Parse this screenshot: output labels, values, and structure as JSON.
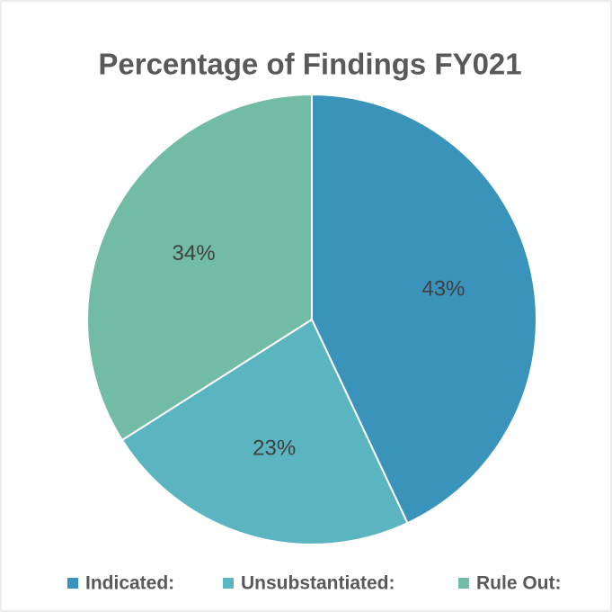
{
  "chart_data": {
    "type": "pie",
    "title": "Percentage of Findings FY021",
    "categories": [
      "Indicated:",
      "Unsubstantiated:",
      "Rule Out:"
    ],
    "values": [
      43,
      23,
      34
    ],
    "value_labels": [
      "43%",
      "23%",
      "34%"
    ],
    "colors": [
      "#3a93bb",
      "#5ab5c0",
      "#72bca5"
    ],
    "legend": "bottom"
  }
}
